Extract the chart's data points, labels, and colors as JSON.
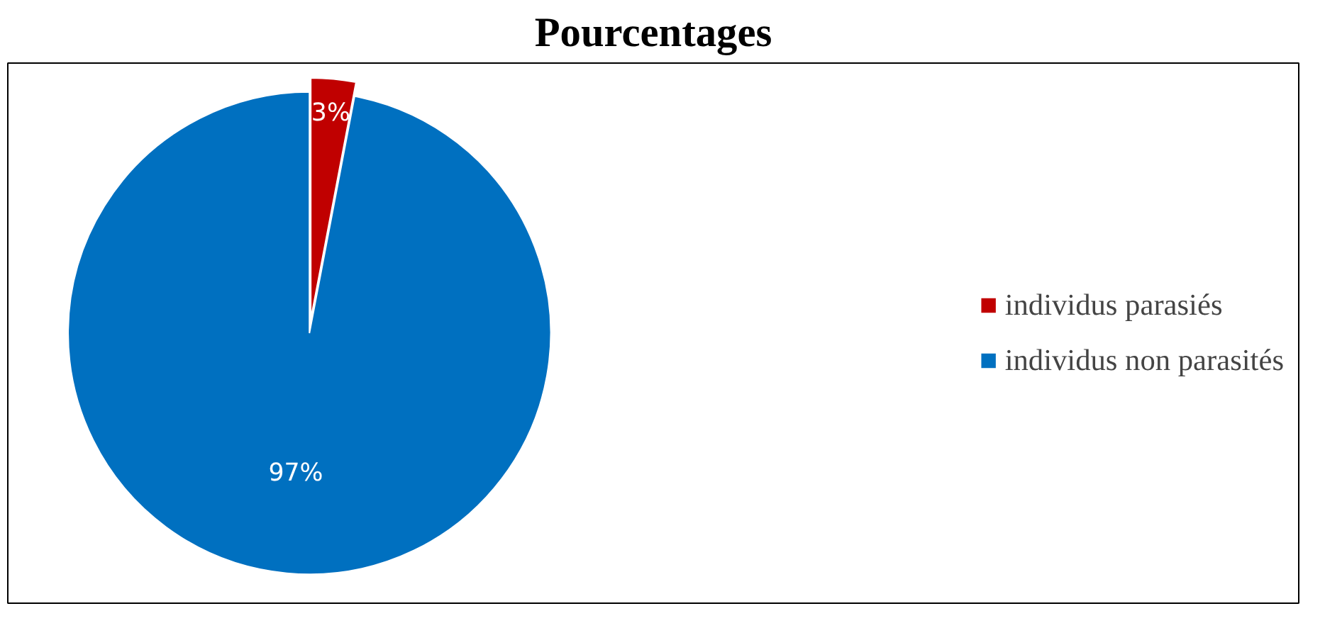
{
  "chart_data": {
    "type": "pie",
    "title": "Pourcentages",
    "categories": [
      "individus parasiés",
      "individus non parasités"
    ],
    "values": [
      3,
      97
    ],
    "colors": [
      "#c00000",
      "#0070c0"
    ],
    "value_labels": [
      "3%",
      "97%"
    ],
    "legend": "right"
  }
}
